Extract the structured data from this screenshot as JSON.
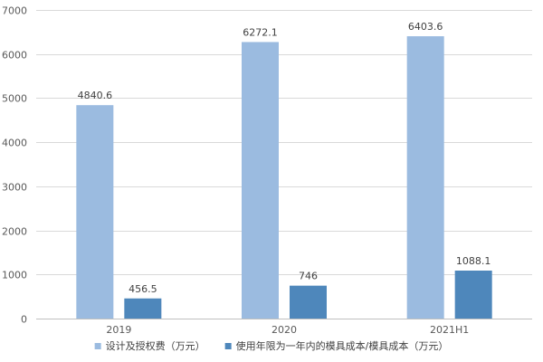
{
  "chart_data": {
    "type": "bar",
    "categories": [
      "2019",
      "2020",
      "2021H1"
    ],
    "series": [
      {
        "name": "设计及授权费（万元）",
        "values": [
          4840.6,
          6272.1,
          6403.6
        ],
        "labels": [
          "4840.6",
          "6272.1",
          "6403.6"
        ],
        "color": "#9bbbe0"
      },
      {
        "name": "使用年限为一年内的模具成本/模具成本（万元）",
        "values": [
          456.5,
          746,
          1088.1
        ],
        "labels": [
          "456.5",
          "746",
          "1088.1"
        ],
        "color": "#4e87bb"
      }
    ],
    "ylim": [
      0,
      7000
    ],
    "yticks": [
      0,
      1000,
      2000,
      3000,
      4000,
      5000,
      6000,
      7000
    ],
    "ytick_labels": [
      "0",
      "1000",
      "2000",
      "3000",
      "4000",
      "5000",
      "6000",
      "7000"
    ],
    "title": "",
    "xlabel": "",
    "ylabel": "",
    "grid": true,
    "legend_position": "bottom",
    "grid_color": "#d9d9d9",
    "axis_color": "#bfbfbf"
  }
}
